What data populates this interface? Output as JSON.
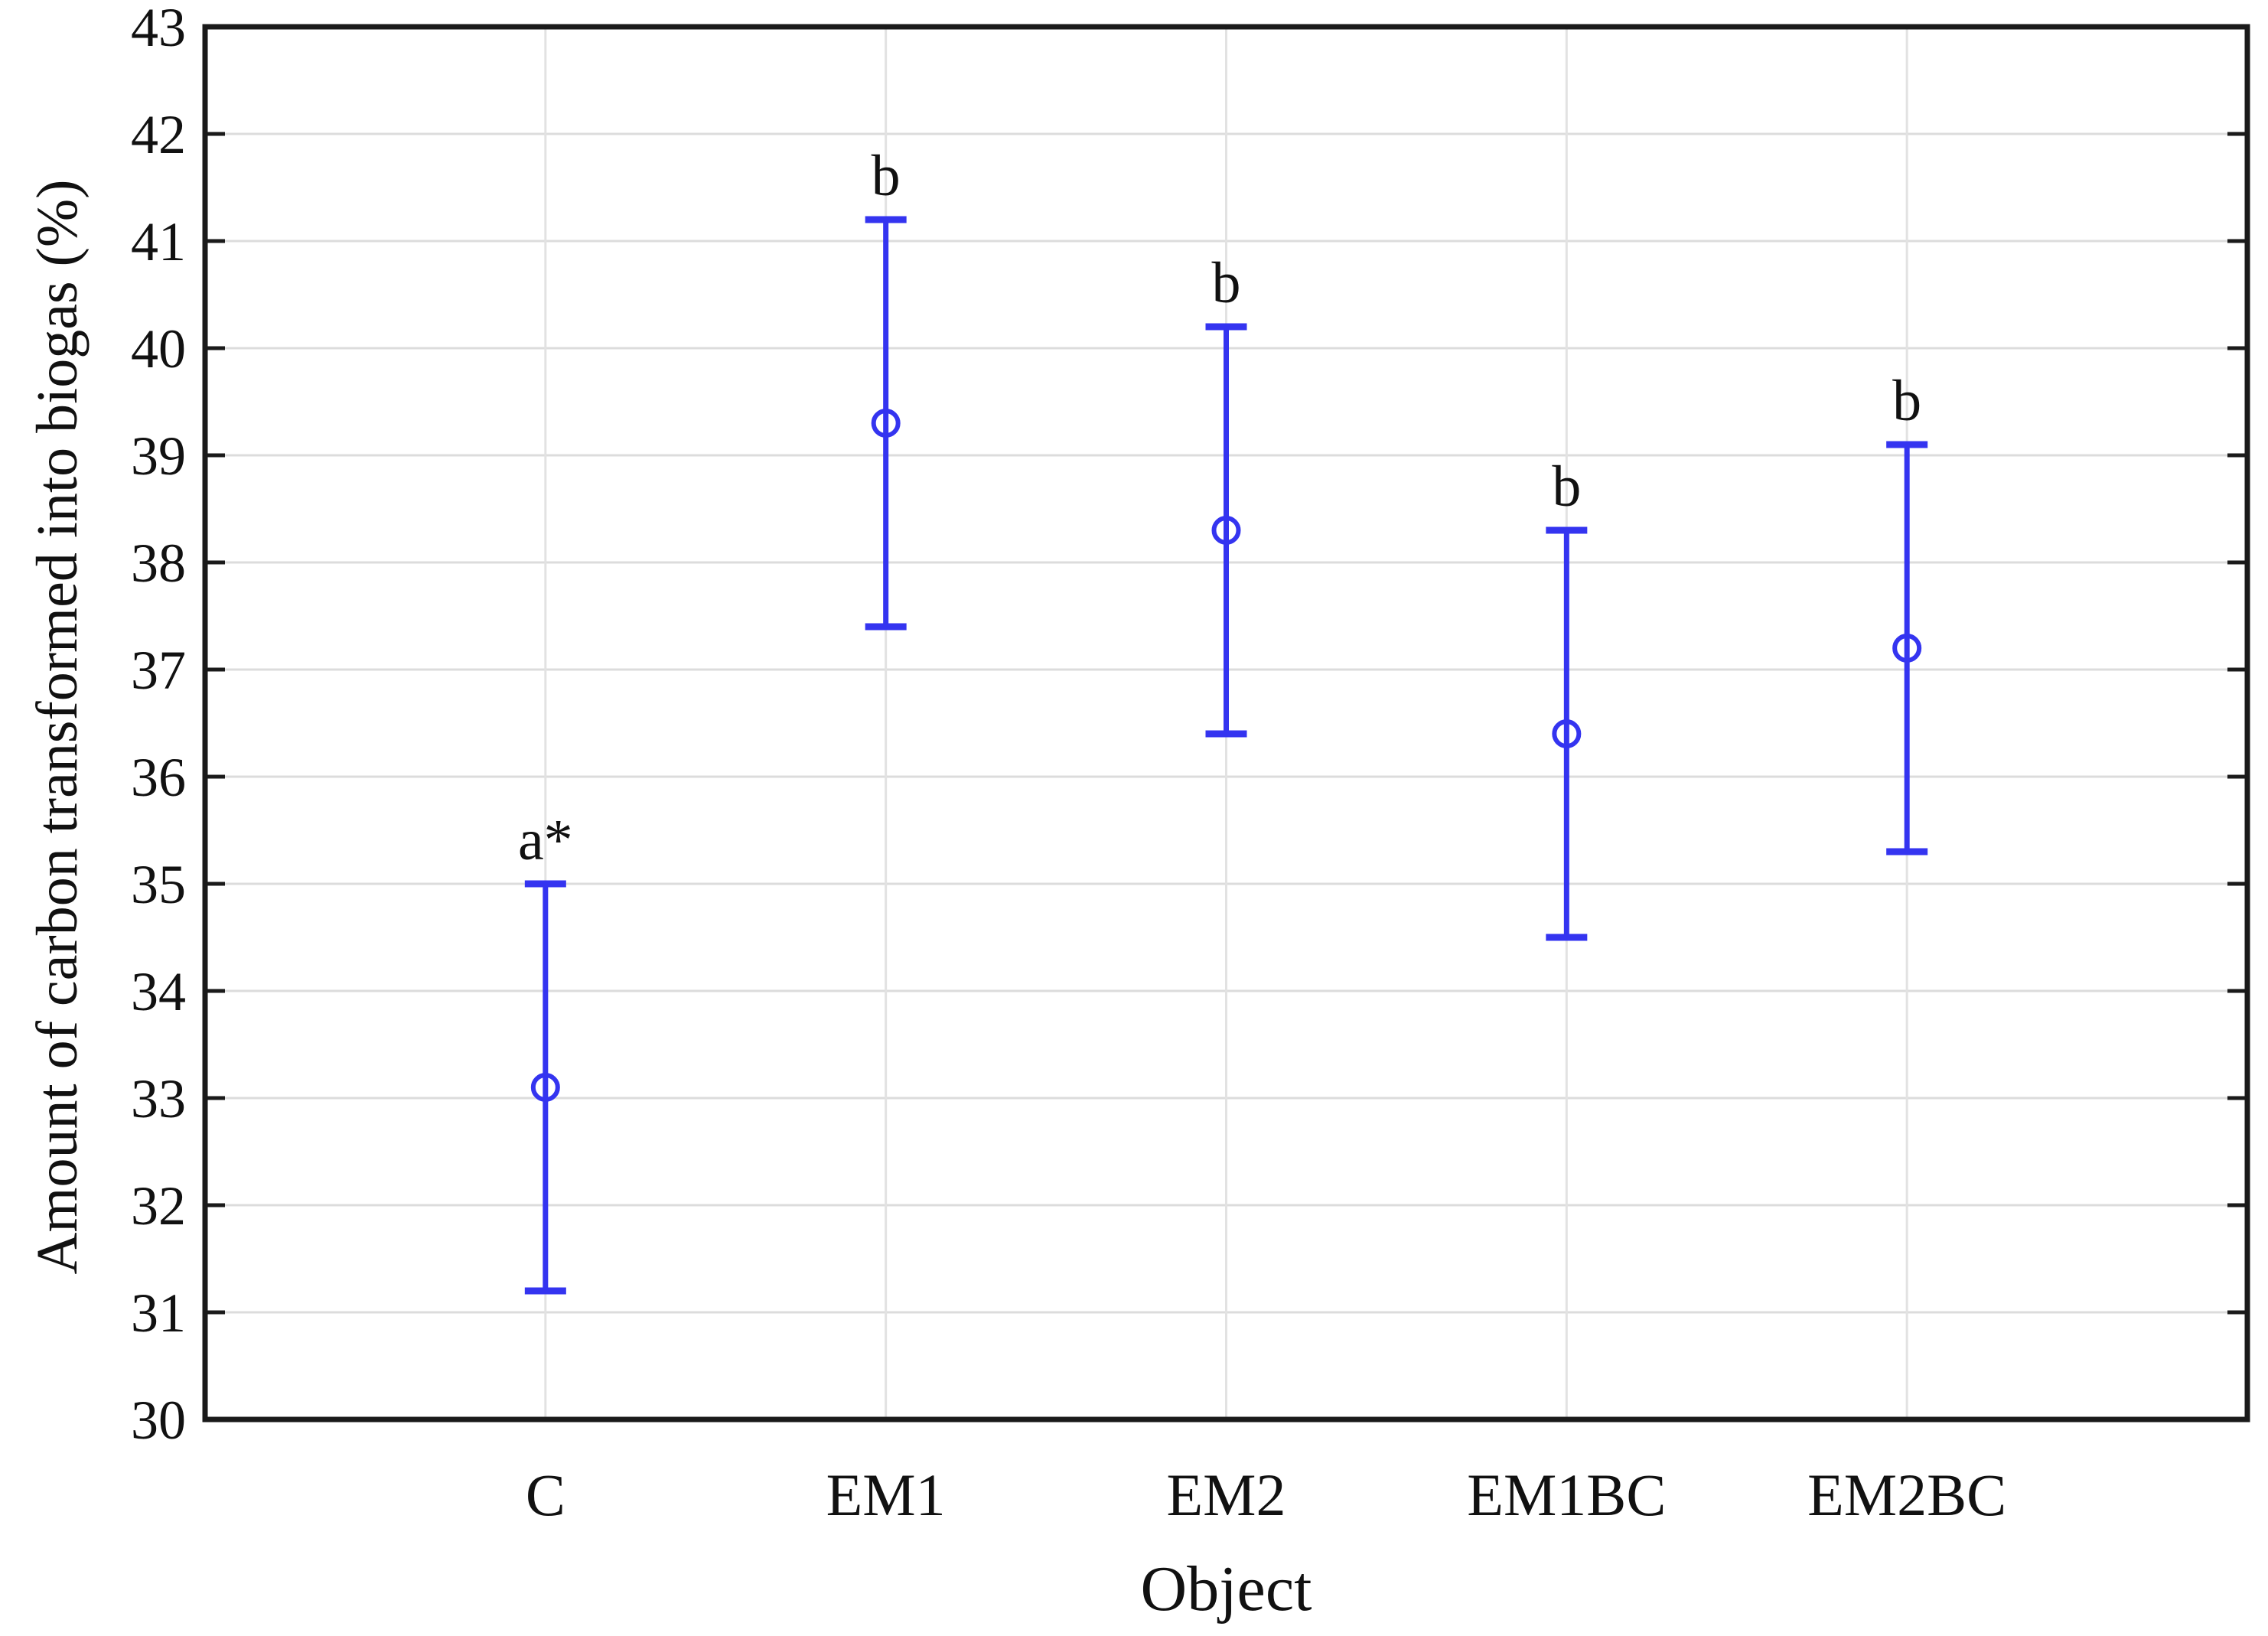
{
  "chart_data": {
    "type": "scatter",
    "title": "",
    "xlabel": "Object",
    "ylabel": "Amount of carbon transformed into biogas (%)",
    "categories": [
      "C",
      "EM1",
      "EM2",
      "EM1BC",
      "EM2BC"
    ],
    "series": [
      {
        "name": "Amount of carbon transformed into biogas",
        "marker": "open-circle",
        "color": "#3434f0",
        "values": [
          33.1,
          39.3,
          38.3,
          36.4,
          37.2
        ],
        "error_upper": [
          35.0,
          41.2,
          40.2,
          38.3,
          39.1
        ],
        "error_lower": [
          31.2,
          37.4,
          36.4,
          34.5,
          35.3
        ]
      }
    ],
    "annotations": [
      {
        "category": "C",
        "label": "a*"
      },
      {
        "category": "EM1",
        "label": "b"
      },
      {
        "category": "EM2",
        "label": "b"
      },
      {
        "category": "EM1BC",
        "label": "b"
      },
      {
        "category": "EM2BC",
        "label": "b"
      }
    ],
    "ylim": [
      30,
      43
    ],
    "ytick_step": 1,
    "grid": {
      "horizontal": true,
      "vertical": true,
      "color": "#dcdcdc"
    },
    "legend": "none",
    "axis_color": "#1a1a1a",
    "background": "#ffffff"
  }
}
